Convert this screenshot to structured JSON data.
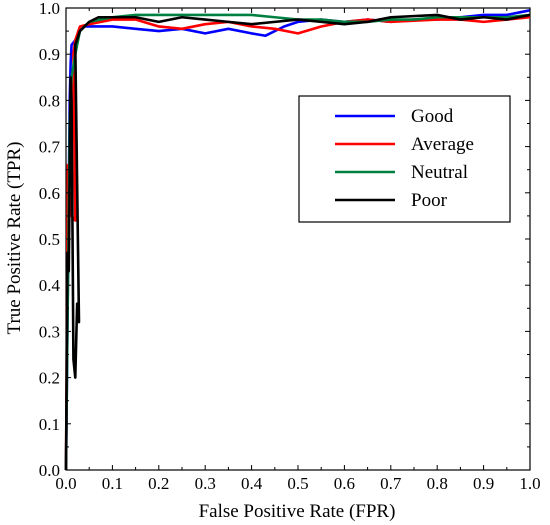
{
  "chart_data": {
    "type": "line",
    "title": "",
    "xlabel": "False Positive Rate (FPR)",
    "ylabel": "True Positive Rate (TPR)",
    "xlim": [
      0,
      1
    ],
    "ylim": [
      0,
      1
    ],
    "xticks": [
      "0.0",
      "0.1",
      "0.2",
      "0.3",
      "0.4",
      "0.5",
      "0.6",
      "0.7",
      "0.8",
      "0.9",
      "1.0"
    ],
    "yticks": [
      "0.0",
      "0.1",
      "0.2",
      "0.3",
      "0.4",
      "0.5",
      "0.6",
      "0.7",
      "0.8",
      "0.9",
      "1.0"
    ],
    "grid": false,
    "legend_position": "center-right",
    "series": [
      {
        "name": "Good",
        "color": "#0000ff",
        "points": [
          [
            0,
            0
          ],
          [
            0.002,
            0.2
          ],
          [
            0.004,
            0.4
          ],
          [
            0.006,
            0.6
          ],
          [
            0.008,
            0.8
          ],
          [
            0.01,
            0.88
          ],
          [
            0.012,
            0.92
          ],
          [
            0.02,
            0.93
          ],
          [
            0.03,
            0.95
          ],
          [
            0.04,
            0.96
          ],
          [
            0.06,
            0.96
          ],
          [
            0.1,
            0.96
          ],
          [
            0.15,
            0.955
          ],
          [
            0.2,
            0.95
          ],
          [
            0.25,
            0.955
          ],
          [
            0.3,
            0.945
          ],
          [
            0.35,
            0.955
          ],
          [
            0.4,
            0.945
          ],
          [
            0.43,
            0.94
          ],
          [
            0.47,
            0.96
          ],
          [
            0.5,
            0.97
          ],
          [
            0.55,
            0.975
          ],
          [
            0.6,
            0.97
          ],
          [
            0.65,
            0.975
          ],
          [
            0.7,
            0.97
          ],
          [
            0.75,
            0.975
          ],
          [
            0.8,
            0.975
          ],
          [
            0.85,
            0.98
          ],
          [
            0.9,
            0.985
          ],
          [
            0.95,
            0.985
          ],
          [
            1.0,
            0.995
          ]
        ]
      },
      {
        "name": "Average",
        "color": "#ff0000",
        "points": [
          [
            0,
            0
          ],
          [
            0.002,
            0.3
          ],
          [
            0.004,
            0.66
          ],
          [
            0.006,
            0.58
          ],
          [
            0.008,
            0.6
          ],
          [
            0.012,
            0.55
          ],
          [
            0.02,
            0.54
          ],
          [
            0.016,
            0.9
          ],
          [
            0.02,
            0.93
          ],
          [
            0.03,
            0.96
          ],
          [
            0.05,
            0.965
          ],
          [
            0.1,
            0.975
          ],
          [
            0.15,
            0.975
          ],
          [
            0.2,
            0.96
          ],
          [
            0.25,
            0.955
          ],
          [
            0.3,
            0.965
          ],
          [
            0.35,
            0.97
          ],
          [
            0.4,
            0.96
          ],
          [
            0.45,
            0.955
          ],
          [
            0.5,
            0.945
          ],
          [
            0.55,
            0.96
          ],
          [
            0.6,
            0.97
          ],
          [
            0.65,
            0.975
          ],
          [
            0.7,
            0.97
          ],
          [
            0.8,
            0.975
          ],
          [
            0.85,
            0.975
          ],
          [
            0.9,
            0.97
          ],
          [
            0.95,
            0.975
          ],
          [
            1.0,
            0.98
          ]
        ]
      },
      {
        "name": "Neutral",
        "color": "#008040",
        "points": [
          [
            0,
            0
          ],
          [
            0.003,
            0.3
          ],
          [
            0.006,
            0.55
          ],
          [
            0.008,
            0.75
          ],
          [
            0.012,
            0.85
          ],
          [
            0.02,
            0.9
          ],
          [
            0.03,
            0.95
          ],
          [
            0.05,
            0.97
          ],
          [
            0.1,
            0.98
          ],
          [
            0.15,
            0.985
          ],
          [
            0.2,
            0.985
          ],
          [
            0.25,
            0.985
          ],
          [
            0.3,
            0.985
          ],
          [
            0.35,
            0.985
          ],
          [
            0.4,
            0.985
          ],
          [
            0.45,
            0.98
          ],
          [
            0.5,
            0.975
          ],
          [
            0.55,
            0.975
          ],
          [
            0.6,
            0.97
          ],
          [
            0.65,
            0.97
          ],
          [
            0.7,
            0.975
          ],
          [
            0.75,
            0.975
          ],
          [
            0.8,
            0.98
          ],
          [
            0.85,
            0.98
          ],
          [
            0.9,
            0.98
          ],
          [
            0.95,
            0.98
          ],
          [
            1.0,
            0.985
          ]
        ]
      },
      {
        "name": "Poor",
        "color": "#000000",
        "points": [
          [
            0,
            0
          ],
          [
            0.003,
            0.47
          ],
          [
            0.006,
            0.43
          ],
          [
            0.008,
            0.65
          ],
          [
            0.01,
            0.85
          ],
          [
            0.012,
            0.8
          ],
          [
            0.016,
            0.24
          ],
          [
            0.02,
            0.2
          ],
          [
            0.024,
            0.36
          ],
          [
            0.028,
            0.32
          ],
          [
            0.02,
            0.92
          ],
          [
            0.03,
            0.95
          ],
          [
            0.05,
            0.97
          ],
          [
            0.07,
            0.98
          ],
          [
            0.1,
            0.98
          ],
          [
            0.15,
            0.98
          ],
          [
            0.2,
            0.97
          ],
          [
            0.25,
            0.98
          ],
          [
            0.3,
            0.975
          ],
          [
            0.35,
            0.97
          ],
          [
            0.4,
            0.965
          ],
          [
            0.45,
            0.97
          ],
          [
            0.5,
            0.975
          ],
          [
            0.55,
            0.97
          ],
          [
            0.6,
            0.965
          ],
          [
            0.65,
            0.97
          ],
          [
            0.7,
            0.98
          ],
          [
            0.8,
            0.985
          ],
          [
            0.85,
            0.975
          ],
          [
            0.9,
            0.98
          ],
          [
            0.95,
            0.975
          ],
          [
            1.0,
            0.985
          ]
        ]
      }
    ]
  }
}
